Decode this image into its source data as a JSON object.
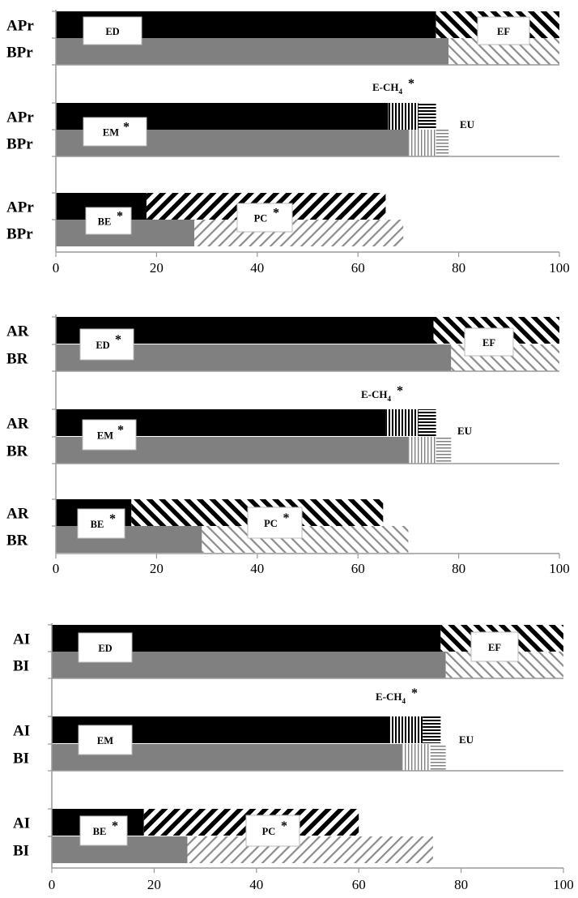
{
  "chart_data": [
    {
      "type": "bar",
      "orientation": "horizontal",
      "stacked": true,
      "xlim": [
        0,
        100
      ],
      "x_ticks": [
        "0",
        "20",
        "40",
        "60",
        "80",
        "100"
      ],
      "rows": [
        {
          "label": "APr",
          "segments": [
            {
              "name": "ED",
              "value": 75.5
            },
            {
              "name": "EF",
              "value": 24.5
            }
          ]
        },
        {
          "label": "BPr",
          "segments": [
            {
              "name": "ED",
              "value": 78
            },
            {
              "name": "EF",
              "value": 22
            }
          ]
        },
        {
          "label": "APr",
          "segments": [
            {
              "name": "EM",
              "value": 66
            },
            {
              "name": "E-CH4",
              "value": 6
            },
            {
              "name": "EU",
              "value": 3.5
            }
          ]
        },
        {
          "label": "BPr",
          "segments": [
            {
              "name": "EM",
              "value": 70
            },
            {
              "name": "E-CH4",
              "value": 5.5
            },
            {
              "name": "EU",
              "value": 2.5
            }
          ]
        },
        {
          "label": "APr",
          "segments": [
            {
              "name": "BE",
              "value": 18
            },
            {
              "name": "PC",
              "value": 47.5
            }
          ]
        },
        {
          "label": "BPr",
          "segments": [
            {
              "name": "BE",
              "value": 27.5
            },
            {
              "name": "PC",
              "value": 41.5
            }
          ]
        }
      ]
    },
    {
      "type": "bar",
      "orientation": "horizontal",
      "stacked": true,
      "xlim": [
        0,
        100
      ],
      "x_ticks": [
        "0",
        "20",
        "40",
        "60",
        "80",
        "100"
      ],
      "rows": [
        {
          "label": "AR",
          "segments": [
            {
              "name": "ED",
              "value": 75
            },
            {
              "name": "EF",
              "value": 25
            }
          ]
        },
        {
          "label": "BR",
          "segments": [
            {
              "name": "ED",
              "value": 78.5
            },
            {
              "name": "EF",
              "value": 21.5
            }
          ]
        },
        {
          "label": "AR",
          "segments": [
            {
              "name": "EM",
              "value": 65.5
            },
            {
              "name": "E-CH4",
              "value": 6.5
            },
            {
              "name": "EU",
              "value": 3.5
            }
          ]
        },
        {
          "label": "BR",
          "segments": [
            {
              "name": "EM",
              "value": 70
            },
            {
              "name": "E-CH4",
              "value": 5.5
            },
            {
              "name": "EU",
              "value": 3
            }
          ]
        },
        {
          "label": "AR",
          "segments": [
            {
              "name": "BE",
              "value": 15
            },
            {
              "name": "PC",
              "value": 50
            }
          ]
        },
        {
          "label": "BR",
          "segments": [
            {
              "name": "BE",
              "value": 29
            },
            {
              "name": "PC",
              "value": 41
            }
          ]
        }
      ]
    },
    {
      "type": "bar",
      "orientation": "horizontal",
      "stacked": true,
      "xlim": [
        0,
        100
      ],
      "x_ticks": [
        "0",
        "20",
        "40",
        "60",
        "80",
        "100"
      ],
      "rows": [
        {
          "label": "AI",
          "segments": [
            {
              "name": "ED",
              "value": 76
            },
            {
              "name": "EF",
              "value": 24
            }
          ]
        },
        {
          "label": "BI",
          "segments": [
            {
              "name": "ED",
              "value": 77
            },
            {
              "name": "EF",
              "value": 23
            }
          ]
        },
        {
          "label": "AI",
          "segments": [
            {
              "name": "EM",
              "value": 66
            },
            {
              "name": "E-CH4",
              "value": 6.5
            },
            {
              "name": "EU",
              "value": 3.5
            }
          ]
        },
        {
          "label": "BI",
          "segments": [
            {
              "name": "EM",
              "value": 68.5
            },
            {
              "name": "E-CH4",
              "value": 5.5
            },
            {
              "name": "EU",
              "value": 3
            }
          ]
        },
        {
          "label": "AI",
          "segments": [
            {
              "name": "BE",
              "value": 18
            },
            {
              "name": "PC",
              "value": 42
            }
          ]
        },
        {
          "label": "BI",
          "segments": [
            {
              "name": "BE",
              "value": 26.5
            },
            {
              "name": "PC",
              "value": 48
            }
          ]
        }
      ]
    }
  ],
  "annotations": [
    [
      {
        "text": "ED",
        "star": "",
        "boxed": true
      },
      {
        "text": "EF",
        "star": "",
        "boxed": true
      },
      {
        "text": "E-CH",
        "sub": "4",
        "star": "*",
        "boxed": false
      },
      {
        "text": "EM",
        "star": "*",
        "boxed": true
      },
      {
        "text": "EU",
        "star": "",
        "boxed": false
      },
      {
        "text": "BE",
        "star": "*",
        "boxed": true
      },
      {
        "text": "PC",
        "star": "*",
        "boxed": true
      }
    ],
    [
      {
        "text": "ED",
        "star": "*",
        "boxed": true
      },
      {
        "text": "EF",
        "star": "",
        "boxed": true
      },
      {
        "text": "E-CH",
        "sub": "4",
        "star": "*",
        "boxed": false
      },
      {
        "text": "EM",
        "star": "*",
        "boxed": true
      },
      {
        "text": "EU",
        "star": "",
        "boxed": false
      },
      {
        "text": "BE",
        "star": "*",
        "boxed": true
      },
      {
        "text": "PC",
        "star": "*",
        "boxed": true
      }
    ],
    [
      {
        "text": "ED",
        "star": "",
        "boxed": true
      },
      {
        "text": "EF",
        "star": "",
        "boxed": true
      },
      {
        "text": "E-CH",
        "sub": "4",
        "star": "*",
        "boxed": false
      },
      {
        "text": "EM",
        "star": "",
        "boxed": true
      },
      {
        "text": "EU",
        "star": "",
        "boxed": false
      },
      {
        "text": "BE",
        "star": "*",
        "boxed": true
      },
      {
        "text": "PC",
        "star": "*",
        "boxed": true
      }
    ]
  ],
  "colors": {
    "A_rows": "#000000",
    "B_rows": "#808080",
    "axis": "#9a9a9a",
    "box_border": "#bbbbbb",
    "box_fill": "#ffffff"
  }
}
